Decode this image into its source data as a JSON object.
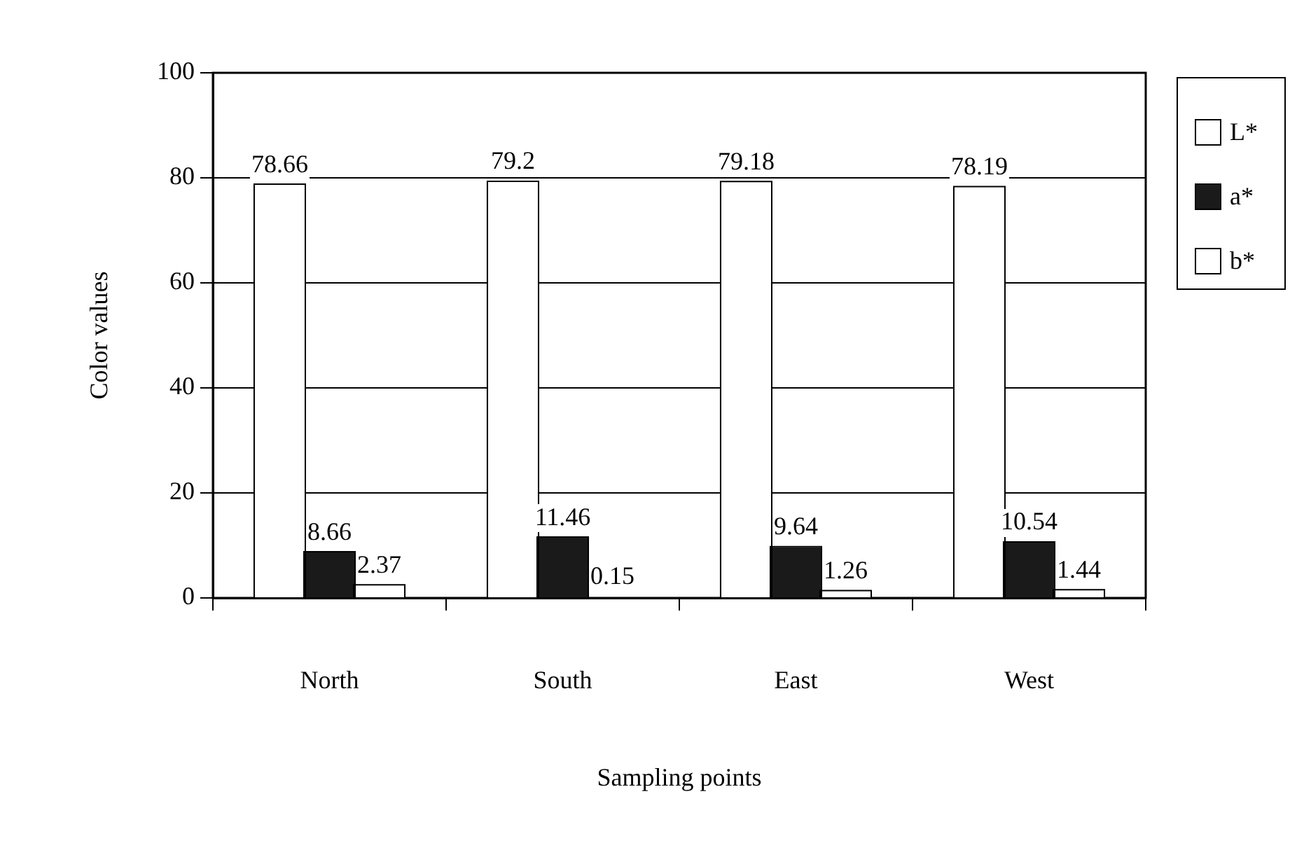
{
  "chart_data": {
    "type": "bar",
    "categories": [
      "North",
      "South",
      "East",
      "West"
    ],
    "series": [
      {
        "name": "L*",
        "color": "#ffffff",
        "values": [
          78.66,
          79.2,
          79.18,
          78.19
        ]
      },
      {
        "name": "a*",
        "color": "#1a1a1a",
        "values": [
          8.66,
          11.46,
          9.64,
          10.54
        ]
      },
      {
        "name": "b*",
        "color": "#ffffff",
        "values": [
          2.37,
          0.15,
          1.26,
          1.44
        ]
      }
    ],
    "xlabel": "Sampling points",
    "ylabel": "Color values",
    "ylim": [
      0,
      100
    ],
    "yticks": [
      0,
      20,
      40,
      60,
      80,
      100
    ],
    "grid": "y",
    "legend": "top right",
    "data_labels": true
  }
}
